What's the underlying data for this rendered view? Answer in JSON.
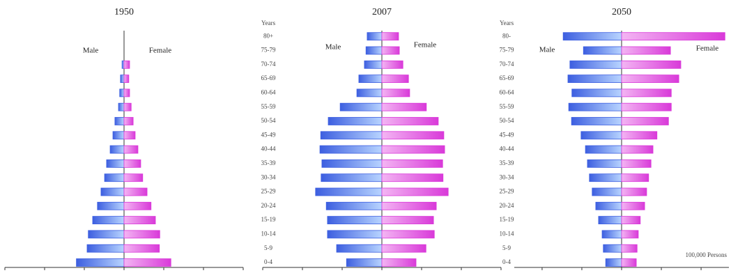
{
  "chart_data": [
    {
      "type": "pyramid",
      "title": "1950",
      "categories": [
        null,
        null,
        null,
        null,
        null,
        null,
        null,
        null,
        null,
        null,
        null,
        null,
        null,
        null,
        null,
        null,
        null
      ],
      "series": [
        {
          "name": "Male",
          "color": "#3d5fe0",
          "values": [
            12,
            9.3,
            9,
            7.9,
            6.7,
            5.8,
            4.9,
            4.4,
            3.5,
            2.8,
            2.3,
            1.4,
            1.1,
            0.9,
            0.5,
            0,
            0
          ]
        },
        {
          "name": "Female",
          "color": "#d93ad9",
          "values": [
            11.8,
            8.9,
            9,
            7.9,
            6.8,
            5.8,
            4.7,
            4.2,
            3.5,
            2.8,
            2.3,
            1.8,
            1.4,
            1.2,
            1.4,
            0,
            0
          ]
        }
      ],
      "xlim": [
        -30,
        30
      ],
      "xticks": [
        -30,
        -20,
        -10,
        0,
        10,
        20,
        30
      ]
    },
    {
      "type": "pyramid",
      "title": "2007",
      "y_label": "Years",
      "categories": [
        "0-4",
        "5-9",
        "10-14",
        "15-19",
        "20-24",
        "25-29",
        "30-34",
        "35-39",
        "40-44",
        "45-49",
        "50-54",
        "55-59",
        "60-64",
        "65-69",
        "70-74",
        "75-79",
        "80+"
      ],
      "series": [
        {
          "name": "Male",
          "color": "#3d5fe0",
          "values": [
            8.9,
            11.4,
            13.7,
            13.7,
            14,
            16.7,
            15.3,
            15.1,
            15.6,
            15.4,
            13.5,
            10.5,
            6.3,
            5.8,
            4.4,
            4,
            3.7
          ]
        },
        {
          "name": "Female",
          "color": "#d93ad9",
          "values": [
            8.6,
            11.1,
            13.2,
            13,
            13.7,
            16.7,
            15.4,
            15.3,
            15.8,
            15.6,
            14.2,
            11.2,
            7,
            6.7,
            5.3,
            4.4,
            4.2
          ]
        }
      ],
      "xlim": [
        -30,
        30
      ],
      "xticks": [
        -30,
        -20,
        -10,
        0,
        10,
        20,
        30
      ]
    },
    {
      "type": "pyramid",
      "title": "2050",
      "y_label": "Years",
      "annotation": "100,000 Persons",
      "categories": [
        "0-4",
        "5-9",
        "10-14",
        "15-19",
        "20-24",
        "25-29",
        "30-34",
        "35-39",
        "40-44",
        "45-49",
        "50-54",
        "55-59",
        "60-64",
        "65-69",
        "70-74",
        "75-79",
        "80-"
      ],
      "series": [
        {
          "name": "Male",
          "color": "#3d5fe0",
          "values": [
            4,
            4.6,
            4.9,
            5.8,
            6.5,
            7.4,
            8.1,
            8.6,
            9.1,
            10.2,
            12.6,
            13.3,
            12.5,
            13.5,
            13,
            9.6,
            14.7
          ]
        },
        {
          "name": "Female",
          "color": "#d93ad9",
          "values": [
            3.7,
            3.9,
            4.2,
            4.7,
            5.8,
            6.3,
            6.8,
            7.4,
            7.9,
            8.9,
            11.8,
            12.5,
            12.5,
            14.4,
            14.9,
            12.3,
            26
          ]
        }
      ],
      "xlim": [
        -27,
        27
      ],
      "xticks": [
        -20,
        -10,
        0,
        10,
        20
      ]
    }
  ]
}
